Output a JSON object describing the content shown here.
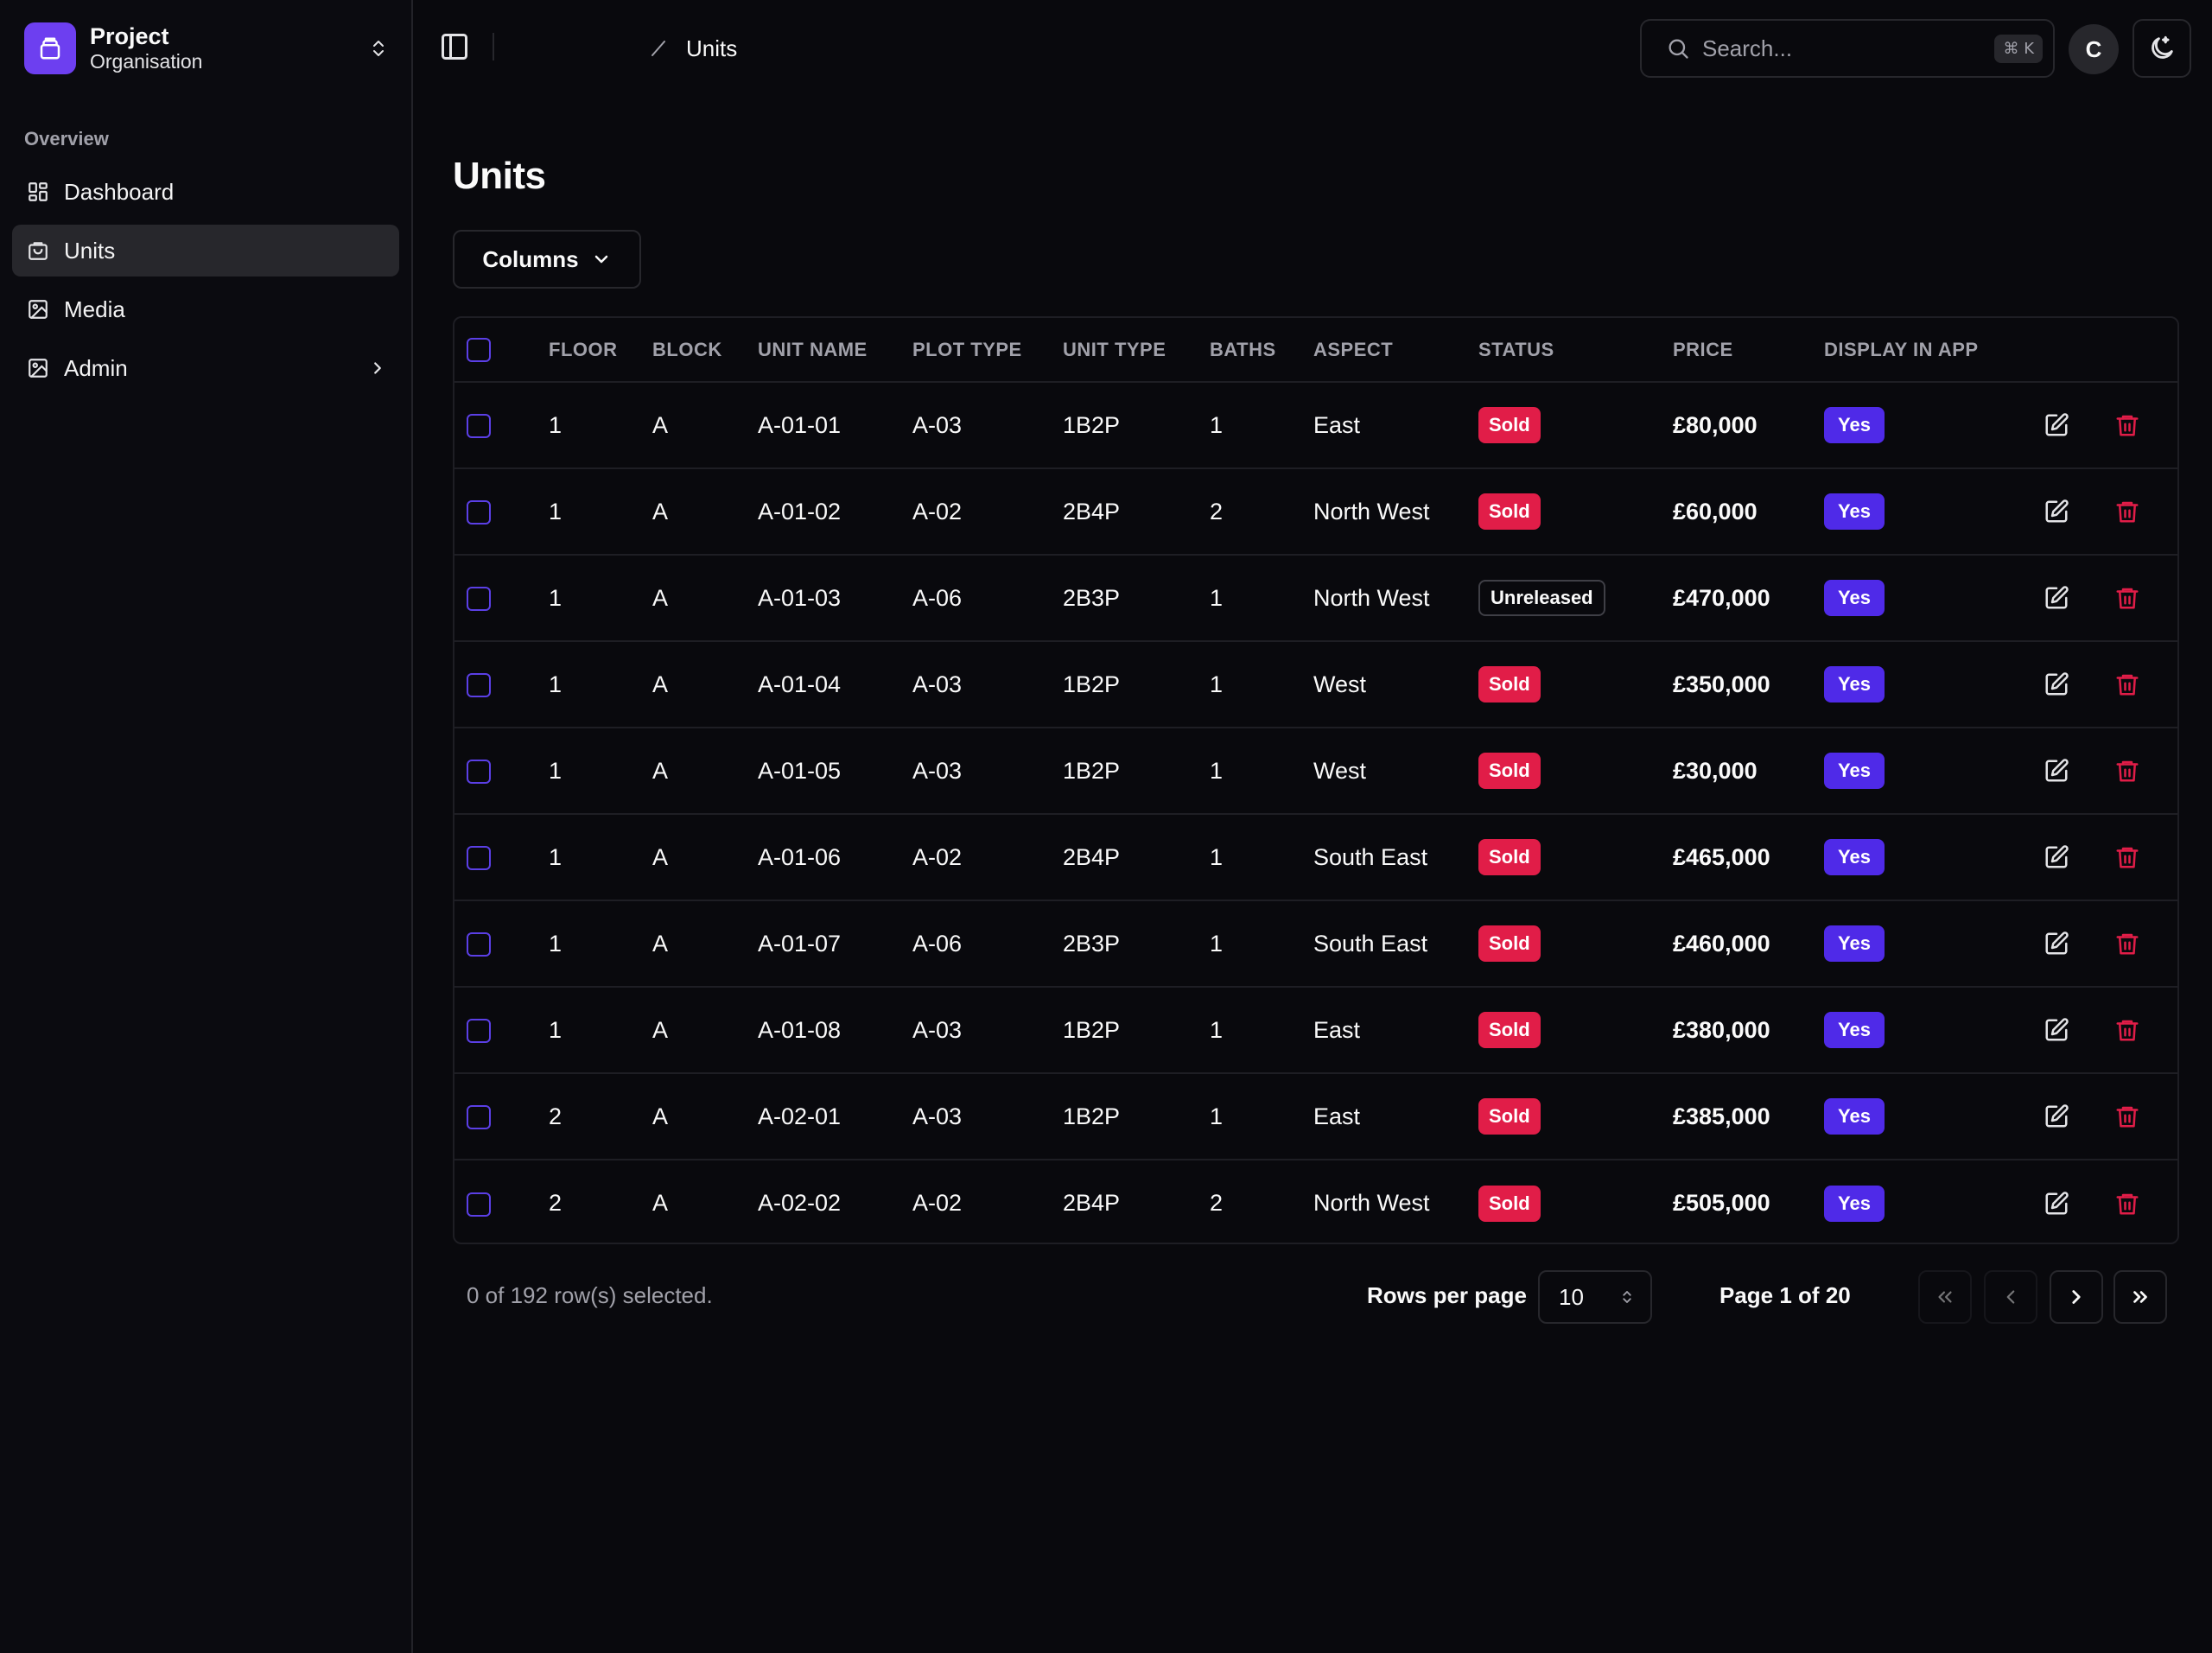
{
  "sidebar": {
    "org_name": "Project",
    "org_sub": "Organisation",
    "group_label": "Overview",
    "items": [
      {
        "label": "Dashboard",
        "icon": "dashboard-icon"
      },
      {
        "label": "Units",
        "icon": "units-icon",
        "active": true
      },
      {
        "label": "Media",
        "icon": "image-icon"
      },
      {
        "label": "Admin",
        "icon": "image-icon",
        "has_chevron": true
      }
    ]
  },
  "header": {
    "breadcrumb": "Units",
    "search_placeholder": "Search...",
    "search_shortcut": "⌘ K",
    "avatar_initial": "C"
  },
  "main": {
    "title": "Units",
    "columns_button": "Columns",
    "table": {
      "headers": [
        "FLOOR",
        "BLOCK",
        "UNIT NAME",
        "PLOT TYPE",
        "UNIT TYPE",
        "BATHS",
        "ASPECT",
        "STATUS",
        "PRICE",
        "DISPLAY IN APP"
      ],
      "rows": [
        {
          "floor": "1",
          "block": "A",
          "unit_name": "A-01-01",
          "plot_type": "A-03",
          "unit_type": "1B2P",
          "baths": "1",
          "aspect": "East",
          "status": "Sold",
          "price": "£80,000",
          "display": "Yes"
        },
        {
          "floor": "1",
          "block": "A",
          "unit_name": "A-01-02",
          "plot_type": "A-02",
          "unit_type": "2B4P",
          "baths": "2",
          "aspect": "North West",
          "status": "Sold",
          "price": "£60,000",
          "display": "Yes"
        },
        {
          "floor": "1",
          "block": "A",
          "unit_name": "A-01-03",
          "plot_type": "A-06",
          "unit_type": "2B3P",
          "baths": "1",
          "aspect": "North West",
          "status": "Unreleased",
          "price": "£470,000",
          "display": "Yes"
        },
        {
          "floor": "1",
          "block": "A",
          "unit_name": "A-01-04",
          "plot_type": "A-03",
          "unit_type": "1B2P",
          "baths": "1",
          "aspect": "West",
          "status": "Sold",
          "price": "£350,000",
          "display": "Yes"
        },
        {
          "floor": "1",
          "block": "A",
          "unit_name": "A-01-05",
          "plot_type": "A-03",
          "unit_type": "1B2P",
          "baths": "1",
          "aspect": "West",
          "status": "Sold",
          "price": "£30,000",
          "display": "Yes"
        },
        {
          "floor": "1",
          "block": "A",
          "unit_name": "A-01-06",
          "plot_type": "A-02",
          "unit_type": "2B4P",
          "baths": "1",
          "aspect": "South East",
          "status": "Sold",
          "price": "£465,000",
          "display": "Yes"
        },
        {
          "floor": "1",
          "block": "A",
          "unit_name": "A-01-07",
          "plot_type": "A-06",
          "unit_type": "2B3P",
          "baths": "1",
          "aspect": "South East",
          "status": "Sold",
          "price": "£460,000",
          "display": "Yes"
        },
        {
          "floor": "1",
          "block": "A",
          "unit_name": "A-01-08",
          "plot_type": "A-03",
          "unit_type": "1B2P",
          "baths": "1",
          "aspect": "East",
          "status": "Sold",
          "price": "£380,000",
          "display": "Yes"
        },
        {
          "floor": "2",
          "block": "A",
          "unit_name": "A-02-01",
          "plot_type": "A-03",
          "unit_type": "1B2P",
          "baths": "1",
          "aspect": "East",
          "status": "Sold",
          "price": "£385,000",
          "display": "Yes"
        },
        {
          "floor": "2",
          "block": "A",
          "unit_name": "A-02-02",
          "plot_type": "A-02",
          "unit_type": "2B4P",
          "baths": "2",
          "aspect": "North West",
          "status": "Sold",
          "price": "£505,000",
          "display": "Yes"
        }
      ]
    }
  },
  "footer": {
    "selection": "0 of 192 row(s) selected.",
    "rows_per_page_label": "Rows per page",
    "rows_per_page_value": "10",
    "page_info": "Page 1 of 20"
  },
  "colors": {
    "background": "#09090d",
    "accent": "#4f2ae8",
    "sold": "#e11d48",
    "delete": "#e11d48"
  }
}
